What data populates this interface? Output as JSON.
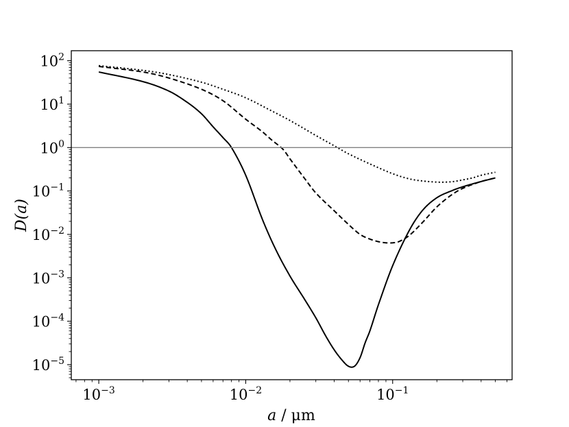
{
  "chart_data": {
    "type": "line",
    "xscale": "log",
    "yscale": "log",
    "xlabel_var": "a",
    "xlabel_sep": " / ",
    "xlabel_unit": "μm",
    "ylabel": "D(a)",
    "xlim": [
      0.00065,
      0.65
    ],
    "ylim": [
      4.5e-06,
      170
    ],
    "xticks": [
      {
        "value": 0.001,
        "base": "10",
        "exp": "−3"
      },
      {
        "value": 0.01,
        "base": "10",
        "exp": "−2"
      },
      {
        "value": 0.1,
        "base": "10",
        "exp": "−1"
      }
    ],
    "yticks": [
      {
        "value": 100,
        "base": "10",
        "exp": "2"
      },
      {
        "value": 10,
        "base": "10",
        "exp": "1"
      },
      {
        "value": 1,
        "base": "10",
        "exp": "0"
      },
      {
        "value": 0.1,
        "base": "10",
        "exp": "−1"
      },
      {
        "value": 0.01,
        "base": "10",
        "exp": "−2"
      },
      {
        "value": 0.001,
        "base": "10",
        "exp": "−3"
      },
      {
        "value": 0.0001,
        "base": "10",
        "exp": "−4"
      },
      {
        "value": 1e-05,
        "base": "10",
        "exp": "−5"
      }
    ],
    "reference_line": {
      "y": 1,
      "color": "#808080"
    },
    "grid": false,
    "series": [
      {
        "style": "solid",
        "color": "#000000",
        "x": [
          0.001,
          0.002,
          0.003,
          0.004,
          0.005,
          0.006,
          0.007,
          0.008,
          0.01,
          0.013,
          0.016,
          0.02,
          0.025,
          0.03,
          0.035,
          0.04,
          0.045,
          0.05,
          0.055,
          0.06,
          0.065,
          0.07,
          0.08,
          0.1,
          0.13,
          0.16,
          0.2,
          0.25,
          0.3,
          0.4,
          0.5
        ],
        "y": [
          55,
          33,
          20,
          11,
          6,
          3,
          1.7,
          1.0,
          0.23,
          0.022,
          0.0045,
          0.0011,
          0.00033,
          0.00012,
          4.6e-05,
          2.2e-05,
          1.3e-05,
          9.2e-06,
          9.2e-06,
          1.45e-05,
          3.2e-05,
          6e-05,
          0.00024,
          0.0019,
          0.0125,
          0.036,
          0.07,
          0.1,
          0.125,
          0.165,
          0.2
        ]
      },
      {
        "style": "dashed",
        "color": "#000000",
        "x": [
          0.001,
          0.002,
          0.003,
          0.005,
          0.007,
          0.01,
          0.013,
          0.015,
          0.018,
          0.02,
          0.025,
          0.03,
          0.04,
          0.05,
          0.06,
          0.07,
          0.08,
          0.09,
          0.1,
          0.11,
          0.13,
          0.16,
          0.2,
          0.25,
          0.3,
          0.4,
          0.5
        ],
        "y": [
          74,
          55,
          40,
          22,
          12,
          4.5,
          2.3,
          1.5,
          0.9,
          0.55,
          0.2,
          0.09,
          0.035,
          0.017,
          0.01,
          0.0078,
          0.0068,
          0.0064,
          0.0064,
          0.0068,
          0.0095,
          0.019,
          0.043,
          0.08,
          0.115,
          0.165,
          0.2
        ]
      },
      {
        "style": "dotted",
        "color": "#000000",
        "x": [
          0.001,
          0.002,
          0.003,
          0.005,
          0.007,
          0.01,
          0.015,
          0.02,
          0.03,
          0.04,
          0.05,
          0.07,
          0.1,
          0.13,
          0.16,
          0.2,
          0.23,
          0.26,
          0.3,
          0.35,
          0.4,
          0.5
        ],
        "y": [
          77,
          60,
          48,
          32,
          22,
          14,
          7,
          4.2,
          1.9,
          1.1,
          0.72,
          0.42,
          0.25,
          0.19,
          0.17,
          0.16,
          0.16,
          0.165,
          0.18,
          0.2,
          0.23,
          0.27
        ]
      }
    ]
  }
}
